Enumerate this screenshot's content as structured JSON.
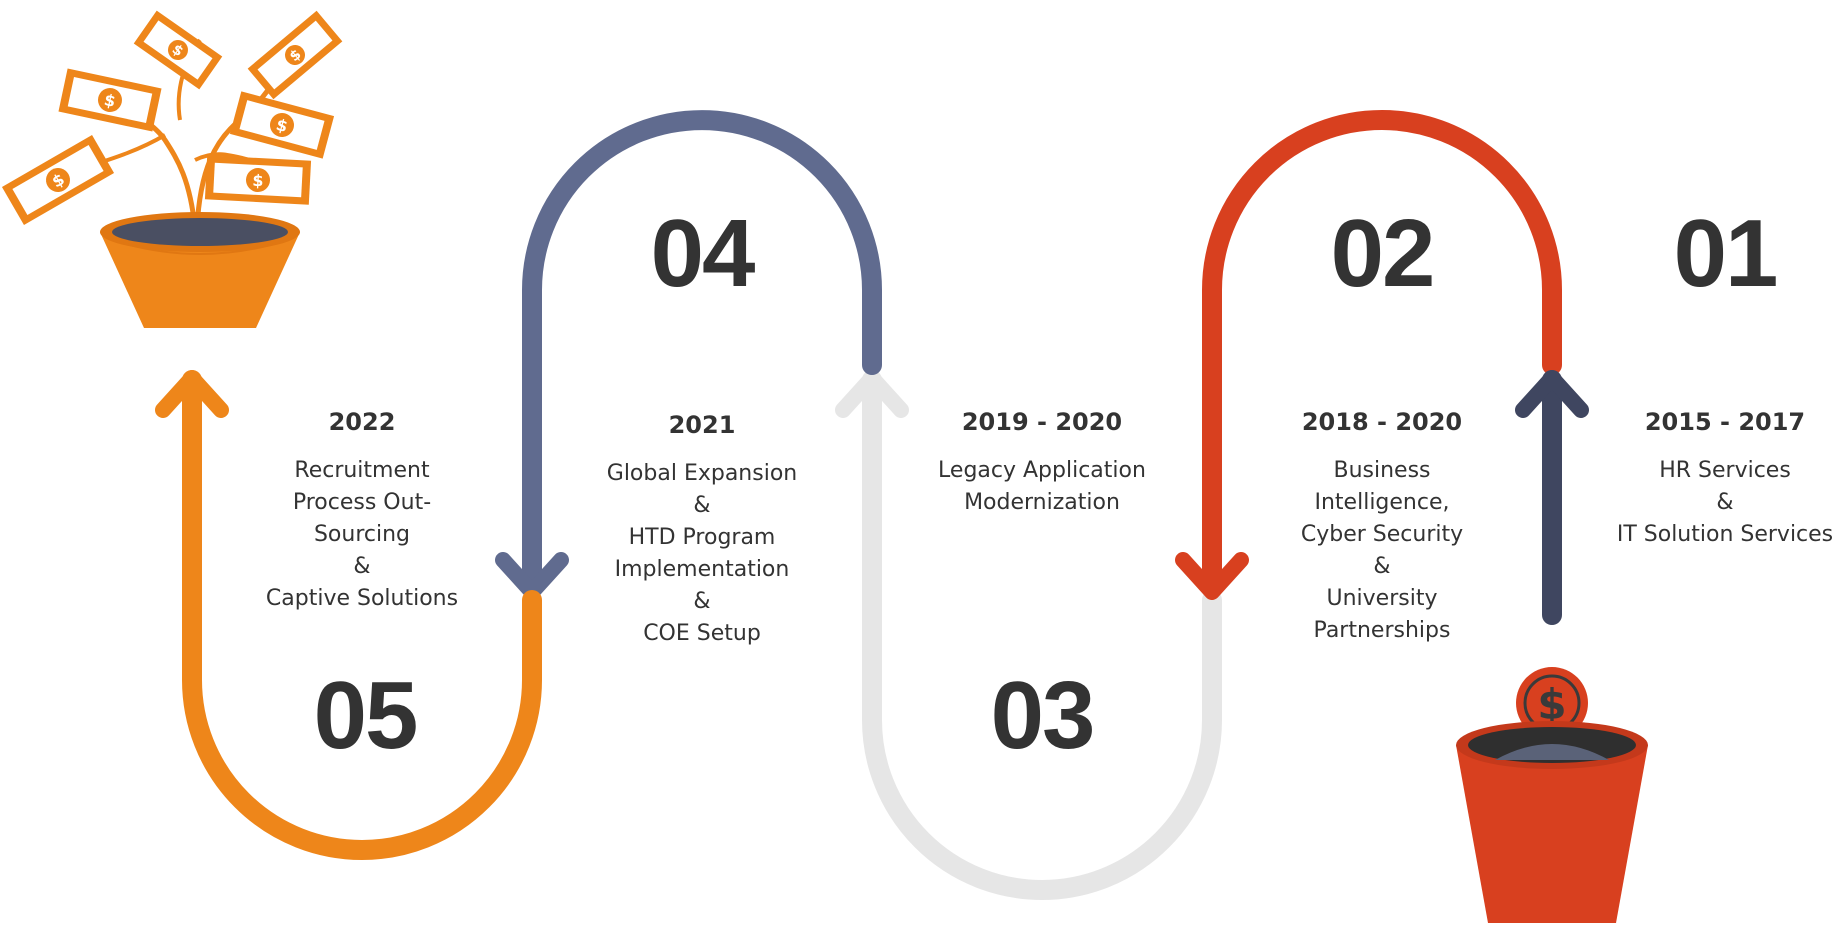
{
  "steps": [
    {
      "number": "01",
      "years": "2015 - 2017",
      "lines": [
        "HR Services",
        "&",
        "IT Solution Services"
      ]
    },
    {
      "number": "02",
      "years": "2018 - 2020",
      "lines": [
        "Business",
        "Intelligence,",
        "Cyber Security",
        "&",
        "University",
        "Partnerships"
      ]
    },
    {
      "number": "03",
      "years": "2019 - 2020",
      "lines": [
        "Legacy Application",
        "Modernization"
      ]
    },
    {
      "number": "04",
      "years": "2021",
      "lines": [
        "Global Expansion",
        "&",
        "HTD Program",
        "Implementation",
        "&",
        "COE Setup"
      ]
    },
    {
      "number": "05",
      "years": "2022",
      "lines": [
        "Recruitment",
        "Process Out-",
        "Sourcing",
        "&",
        "Captive Solutions"
      ]
    }
  ],
  "icons": {
    "start": "dollar-coin-pot-icon",
    "end": "money-tree-pot-icon"
  },
  "colors": {
    "step1": "#3f4660",
    "step2": "#d8401f",
    "step3": "#e6e6e6",
    "step4": "#606b8f",
    "step5": "#ee861a",
    "text": "#333333"
  }
}
